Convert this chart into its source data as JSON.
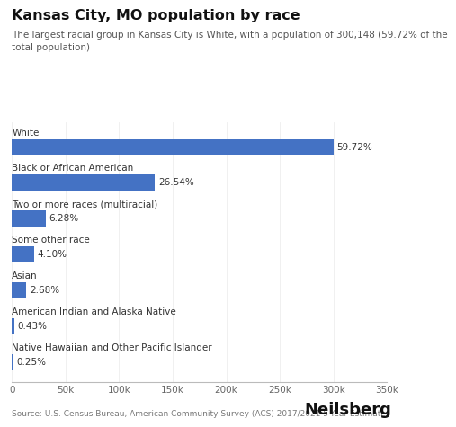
{
  "title": "Kansas City, MO population by race",
  "subtitle": "The largest racial group in Kansas City is White, with a population of 300,148 (59.72% of the\ntotal population)",
  "categories": [
    "White",
    "Black or African American",
    "Two or more races (multiracial)",
    "Some other race",
    "Asian",
    "American Indian and Alaska Native",
    "Native Hawaiian and Other Pacific Islander"
  ],
  "values": [
    300148,
    133370,
    31573,
    20613,
    13472,
    2161,
    1257
  ],
  "percentages": [
    "59.72%",
    "26.54%",
    "6.28%",
    "4.10%",
    "2.68%",
    "0.43%",
    "0.25%"
  ],
  "bar_color": "#4472C4",
  "background_color": "#ffffff",
  "xlim": [
    0,
    350000
  ],
  "xticks": [
    0,
    50000,
    100000,
    150000,
    200000,
    250000,
    300000,
    350000
  ],
  "xtick_labels": [
    "0",
    "50k",
    "100k",
    "150k",
    "200k",
    "250k",
    "300k",
    "350k"
  ],
  "source_text": "Source: U.S. Census Bureau, American Community Survey (ACS) 2017/2021 5-Year Estimates",
  "brand_text": "Neilsberg",
  "title_fontsize": 11.5,
  "subtitle_fontsize": 7.5,
  "category_fontsize": 7.5,
  "pct_fontsize": 7.5,
  "tick_fontsize": 7.5,
  "source_fontsize": 6.5,
  "brand_fontsize": 13
}
